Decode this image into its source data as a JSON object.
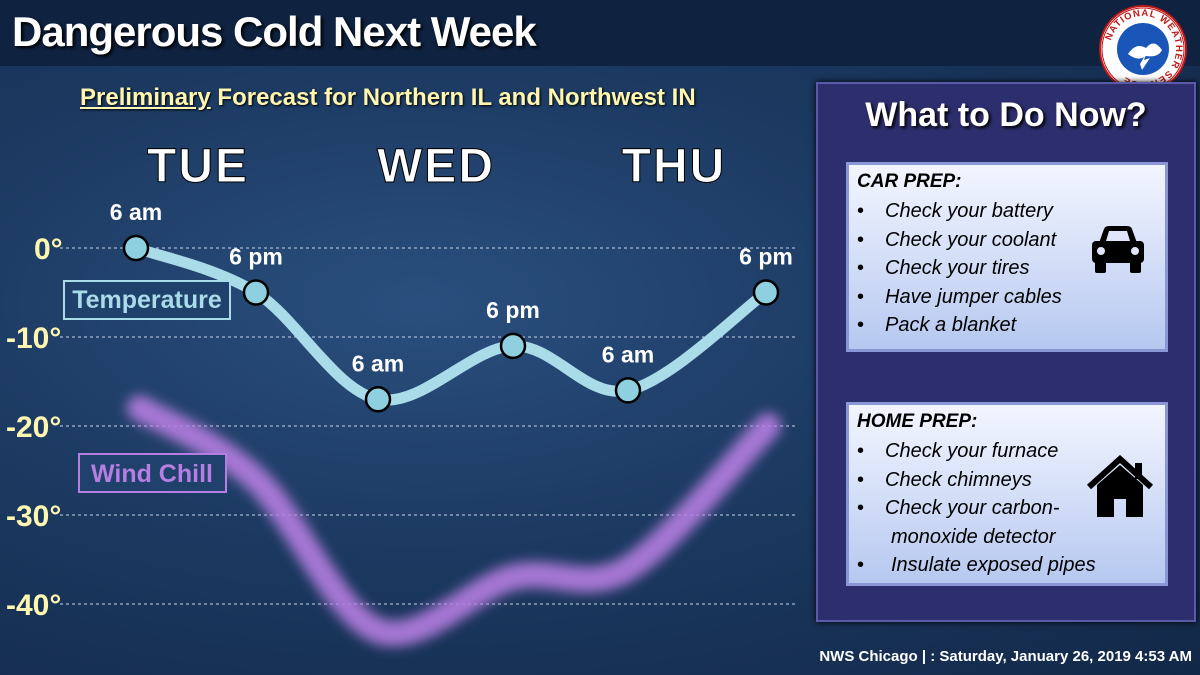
{
  "header": {
    "title": "Dangerous Cold Next Week",
    "subtitle_emph": "Preliminary",
    "subtitle_rest": " Forecast for Northern IL and Northwest IN",
    "logo_text": "NATIONAL WEATHER SERVICE"
  },
  "chart_data": {
    "type": "line",
    "days": [
      "TUE",
      "WED",
      "THU"
    ],
    "y_tick_labels": [
      "0°",
      "-10°",
      "-20°",
      "-30°",
      "-40°"
    ],
    "y_ticks": [
      0,
      -10,
      -20,
      -30,
      -40
    ],
    "ylim": [
      -45,
      5
    ],
    "grid": true,
    "series": [
      {
        "name": "Temperature",
        "color": "#a9dbe8",
        "points": [
          {
            "time_label": "6 am",
            "x": 0,
            "value": 0
          },
          {
            "time_label": "6 pm",
            "x": 1,
            "value": -5
          },
          {
            "time_label": "6 am",
            "x": 2,
            "value": -17
          },
          {
            "time_label": "6 pm",
            "x": 3,
            "value": -11
          },
          {
            "time_label": "6 am",
            "x": 4,
            "value": -16
          },
          {
            "time_label": "6 pm",
            "x": 5,
            "value": -5
          }
        ]
      },
      {
        "name": "Wind Chill",
        "color": "#b57ee0",
        "values": [
          -18,
          -26,
          -43,
          -37,
          -36,
          -20
        ]
      }
    ]
  },
  "panel": {
    "title": "What to Do Now?",
    "car": {
      "heading": "CAR PREP:",
      "items": [
        "Check your battery",
        "Check your coolant",
        "Check your tires",
        "Have jumper cables",
        "Pack a blanket"
      ]
    },
    "home": {
      "heading": "HOME PREP:",
      "items": [
        "Check your furnace",
        "Check chimneys",
        "Check your carbon-",
        "monoxide detector",
        "Insulate exposed pipes"
      ]
    }
  },
  "footer": {
    "text": "NWS Chicago | : Saturday, January 26, 2019 4:53 AM"
  }
}
